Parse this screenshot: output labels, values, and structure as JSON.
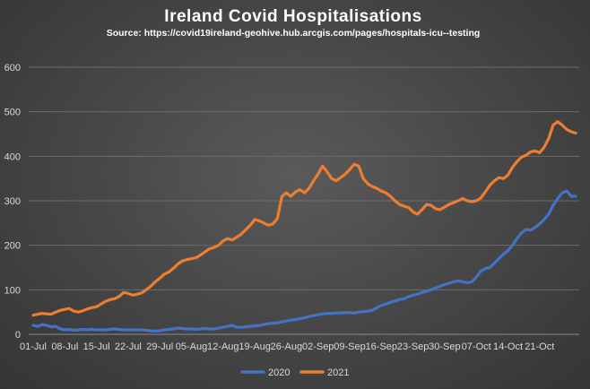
{
  "chart_data": {
    "type": "line",
    "title": "Ireland Covid Hospitalisations",
    "subtitle": "Source: https://covid19ireland-geohive.hub.arcgis.com/pages/hospitals-icu--testing",
    "xlabel": "",
    "ylabel": "",
    "ylim": [
      0,
      600
    ],
    "yticks": [
      0,
      100,
      200,
      300,
      400,
      500,
      600
    ],
    "xtick_labels": [
      "01-Jul",
      "08-Jul",
      "15-Jul",
      "22-Jul",
      "29-Jul",
      "05-Aug",
      "12-Aug",
      "19-Aug",
      "26-Aug",
      "02-Sep",
      "09-Sep",
      "16-Sep",
      "23-Sep",
      "30-Sep",
      "07-Oct",
      "14-Oct",
      "21-Oct"
    ],
    "grid": true,
    "legend_position": "bottom",
    "series": [
      {
        "name": "2020",
        "color": "#4472c4",
        "values": [
          20,
          18,
          22,
          20,
          17,
          18,
          12,
          10,
          11,
          9,
          10,
          11,
          10,
          11,
          10,
          10,
          10,
          11,
          12,
          11,
          10,
          10,
          10,
          10,
          10,
          9,
          8,
          7,
          8,
          10,
          11,
          12,
          14,
          13,
          12,
          12,
          11,
          12,
          13,
          12,
          12,
          14,
          16,
          18,
          20,
          16,
          16,
          17,
          18,
          19,
          20,
          22,
          24,
          25,
          26,
          28,
          30,
          32,
          33,
          35,
          37,
          40,
          42,
          44,
          46,
          47,
          47,
          48,
          48,
          49,
          49,
          48,
          50,
          51,
          52,
          54,
          60,
          65,
          68,
          72,
          75,
          78,
          80,
          85,
          88,
          90,
          94,
          97,
          100,
          104,
          108,
          112,
          115,
          118,
          120,
          118,
          116,
          118,
          128,
          142,
          148,
          150,
          160,
          170,
          180,
          188,
          200,
          215,
          228,
          236,
          234,
          240,
          248,
          258,
          270,
          290,
          305,
          318,
          322,
          310,
          310
        ],
        "x_start": "01-Jul",
        "x_end": "21-Oct"
      },
      {
        "name": "2021",
        "color": "#ed7d31",
        "values": [
          43,
          45,
          47,
          46,
          45,
          50,
          54,
          56,
          58,
          52,
          50,
          53,
          57,
          60,
          62,
          68,
          74,
          78,
          80,
          85,
          94,
          92,
          88,
          90,
          93,
          100,
          108,
          118,
          126,
          135,
          140,
          148,
          158,
          165,
          168,
          170,
          172,
          178,
          185,
          192,
          195,
          200,
          210,
          215,
          212,
          218,
          225,
          235,
          245,
          258,
          255,
          250,
          245,
          248,
          260,
          310,
          318,
          310,
          320,
          325,
          318,
          328,
          345,
          360,
          378,
          365,
          350,
          345,
          352,
          360,
          370,
          382,
          378,
          350,
          338,
          332,
          328,
          322,
          318,
          310,
          300,
          292,
          288,
          285,
          275,
          270,
          280,
          292,
          290,
          282,
          280,
          286,
          292,
          296,
          300,
          305,
          300,
          298,
          300,
          306,
          320,
          335,
          345,
          352,
          350,
          358,
          375,
          388,
          398,
          402,
          410,
          412,
          408,
          420,
          440,
          470,
          478,
          470,
          460,
          455,
          452
        ],
        "x_start": "01-Jul",
        "x_end": "22-Oct"
      }
    ]
  }
}
